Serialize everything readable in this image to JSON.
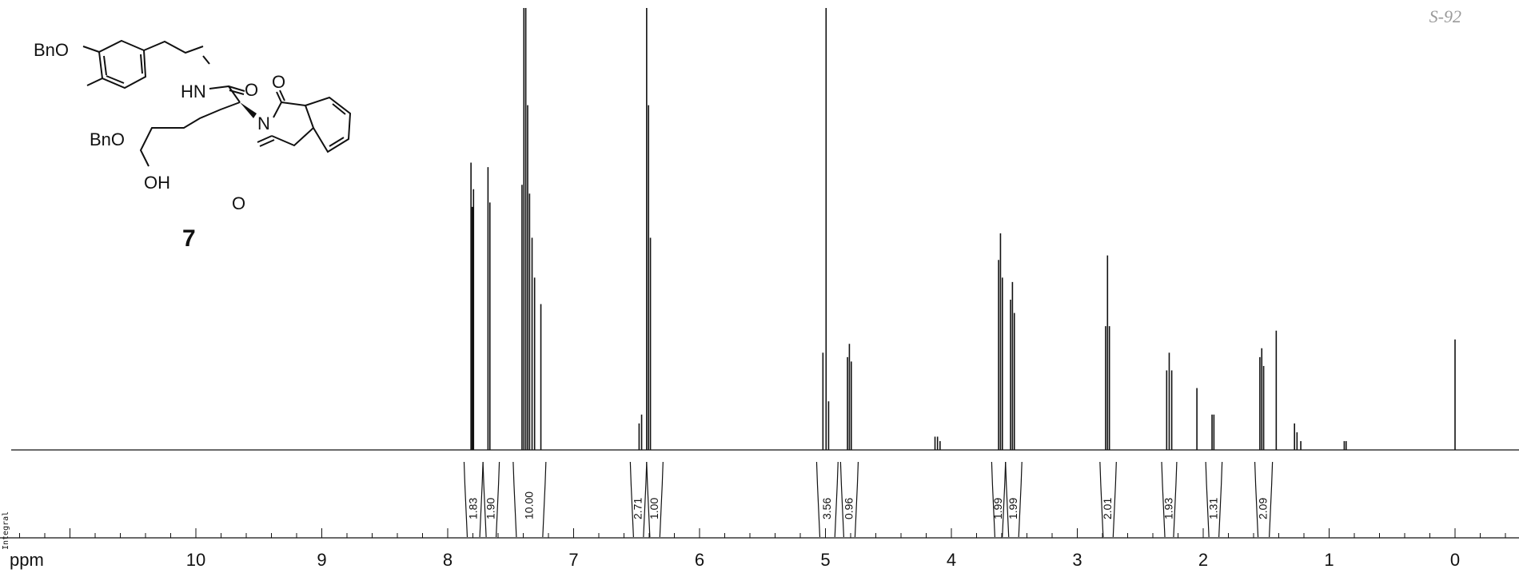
{
  "page_label": "S-92",
  "compound": {
    "label": "7",
    "structure_labels": {
      "bno_top": "BnO",
      "bno_bottom": "BnO",
      "hn": "HN",
      "o_amide": "O",
      "n_imide": "N",
      "o_imide_top": "O",
      "o_imide_bottom": "O",
      "oh": "OH"
    }
  },
  "integral_axis_label": "Integral",
  "chart_data": {
    "type": "line",
    "title": "",
    "xlabel": "ppm",
    "ylabel": "",
    "xlim": [
      11.5,
      -0.45
    ],
    "x_reversed": true,
    "ylim": [
      0,
      100
    ],
    "x_ticks": [
      "10",
      "9",
      "8",
      "7",
      "6",
      "5",
      "4",
      "3",
      "2",
      "1",
      "0"
    ],
    "grid": false,
    "legend": "none",
    "peaks": [
      {
        "ppm": 7.815,
        "height": 65
      },
      {
        "ppm": 7.795,
        "height": 59
      },
      {
        "ppm": 7.805,
        "height": 55
      },
      {
        "ppm": 7.68,
        "height": 64
      },
      {
        "ppm": 7.665,
        "height": 56
      },
      {
        "ppm": 7.41,
        "height": 60
      },
      {
        "ppm": 7.395,
        "height": 100
      },
      {
        "ppm": 7.38,
        "height": 100
      },
      {
        "ppm": 7.365,
        "height": 78
      },
      {
        "ppm": 7.35,
        "height": 58
      },
      {
        "ppm": 7.33,
        "height": 48
      },
      {
        "ppm": 7.31,
        "height": 39
      },
      {
        "ppm": 7.26,
        "height": 33
      },
      {
        "ppm": 6.48,
        "height": 6
      },
      {
        "ppm": 6.46,
        "height": 8
      },
      {
        "ppm": 6.42,
        "height": 100
      },
      {
        "ppm": 6.405,
        "height": 78
      },
      {
        "ppm": 6.39,
        "height": 48
      },
      {
        "ppm": 5.02,
        "height": 22
      },
      {
        "ppm": 4.995,
        "height": 100
      },
      {
        "ppm": 4.975,
        "height": 11
      },
      {
        "ppm": 4.825,
        "height": 21
      },
      {
        "ppm": 4.81,
        "height": 24
      },
      {
        "ppm": 4.795,
        "height": 20
      },
      {
        "ppm": 4.13,
        "height": 3
      },
      {
        "ppm": 4.11,
        "height": 3
      },
      {
        "ppm": 4.09,
        "height": 2
      },
      {
        "ppm": 3.625,
        "height": 43
      },
      {
        "ppm": 3.61,
        "height": 49
      },
      {
        "ppm": 3.595,
        "height": 39
      },
      {
        "ppm": 3.53,
        "height": 34
      },
      {
        "ppm": 3.515,
        "height": 38
      },
      {
        "ppm": 3.5,
        "height": 31
      },
      {
        "ppm": 2.775,
        "height": 28
      },
      {
        "ppm": 2.76,
        "height": 44
      },
      {
        "ppm": 2.745,
        "height": 28
      },
      {
        "ppm": 2.29,
        "height": 18
      },
      {
        "ppm": 2.27,
        "height": 22
      },
      {
        "ppm": 2.25,
        "height": 18
      },
      {
        "ppm": 2.05,
        "height": 14
      },
      {
        "ppm": 1.93,
        "height": 8
      },
      {
        "ppm": 1.915,
        "height": 8
      },
      {
        "ppm": 1.55,
        "height": 21
      },
      {
        "ppm": 1.535,
        "height": 23
      },
      {
        "ppm": 1.52,
        "height": 19
      },
      {
        "ppm": 1.42,
        "height": 27
      },
      {
        "ppm": 1.275,
        "height": 6
      },
      {
        "ppm": 1.255,
        "height": 4
      },
      {
        "ppm": 1.225,
        "height": 2
      },
      {
        "ppm": 0.88,
        "height": 2
      },
      {
        "ppm": 0.865,
        "height": 2
      },
      {
        "ppm": 0.0,
        "height": 25
      }
    ],
    "integrals": [
      {
        "from": 7.87,
        "to": 7.72,
        "value": "1.83"
      },
      {
        "from": 7.72,
        "to": 7.59,
        "value": "1.90"
      },
      {
        "from": 7.48,
        "to": 7.22,
        "value": "10.00"
      },
      {
        "from": 6.55,
        "to": 6.42,
        "value": "2.71"
      },
      {
        "from": 6.42,
        "to": 6.29,
        "value": "1.00"
      },
      {
        "from": 5.07,
        "to": 4.9,
        "value": "3.56"
      },
      {
        "from": 4.88,
        "to": 4.74,
        "value": "0.96"
      },
      {
        "from": 3.68,
        "to": 3.57,
        "value": "1.99"
      },
      {
        "from": 3.57,
        "to": 3.44,
        "value": "1.99"
      },
      {
        "from": 2.82,
        "to": 2.69,
        "value": "2.01"
      },
      {
        "from": 2.33,
        "to": 2.21,
        "value": "1.93"
      },
      {
        "from": 1.98,
        "to": 1.85,
        "value": "1.31"
      },
      {
        "from": 1.59,
        "to": 1.45,
        "value": "2.09"
      }
    ]
  }
}
